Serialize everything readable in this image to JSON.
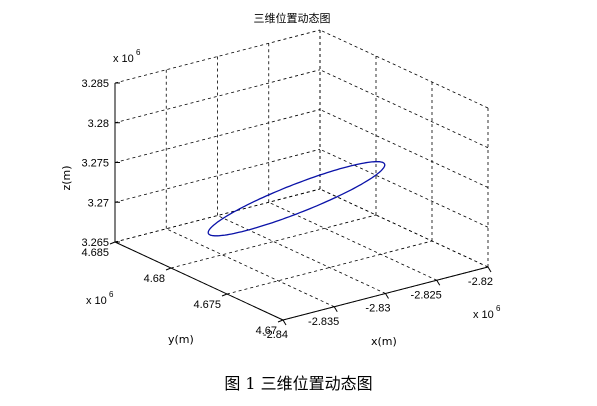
{
  "caption": "图 1  三维位置动态图",
  "chart_data": {
    "type": "line3d",
    "title": "三维位置动态图",
    "xlabel": "x(m)",
    "ylabel": "y(m)",
    "zlabel": "z(m)",
    "x_multiplier": "x 10",
    "x_multiplier_exp": "6",
    "y_multiplier": "x 10",
    "y_multiplier_exp": "6",
    "z_multiplier": "x 10",
    "z_multiplier_exp": "6",
    "xlim": [
      -2.84,
      -2.82
    ],
    "ylim": [
      4.67,
      4.685
    ],
    "zlim": [
      3.265,
      3.285
    ],
    "x_ticks": [
      "-2.84",
      "-2.835",
      "-2.83",
      "-2.825",
      "-2.82"
    ],
    "y_ticks": [
      "4.67",
      "4.675",
      "4.68",
      "4.685"
    ],
    "z_ticks": [
      "3.265",
      "3.27",
      "3.275",
      "3.28",
      "3.285"
    ],
    "grid": true,
    "series_color": "#0a12a8",
    "trajectory": {
      "shape": "closed ellipse",
      "center": {
        "x": -2.8318,
        "y": 4.6763,
        "z": 3.2734
      },
      "extent_x": [
        -2.8358,
        -2.8278
      ],
      "extent_y": [
        4.6721,
        4.6805
      ],
      "extent_z": [
        3.2676,
        3.2792
      ]
    }
  }
}
